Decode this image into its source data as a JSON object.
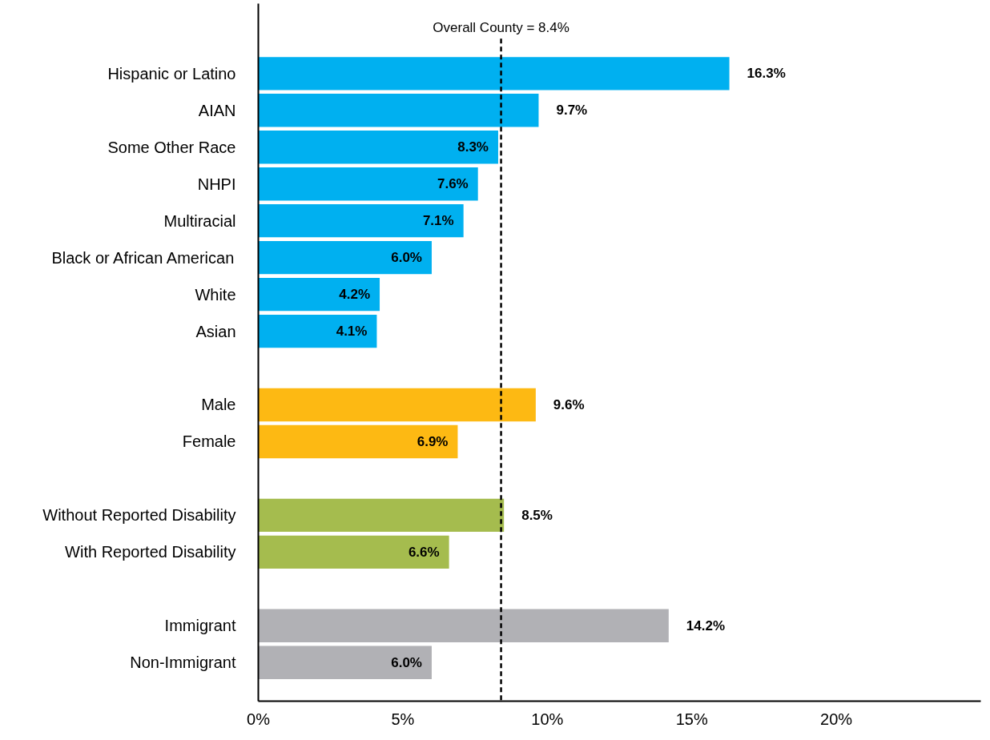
{
  "chart_data": {
    "type": "bar",
    "orientation": "horizontal",
    "categories": [
      "Hispanic or Latino",
      "AIAN",
      "Some Other Race",
      "NHPI",
      "Multiracial",
      "Black or African American",
      "White",
      "Asian",
      null,
      "Male",
      "Female",
      null,
      "Without Reported Disability",
      "With Reported Disability",
      null,
      "Immigrant",
      "Non-Immigrant"
    ],
    "values": [
      16.3,
      9.7,
      8.3,
      7.6,
      7.1,
      6.0,
      4.2,
      4.1,
      null,
      9.6,
      6.9,
      null,
      8.5,
      6.6,
      null,
      14.2,
      6.0
    ],
    "value_labels": [
      "16.3%",
      "9.7%",
      "8.3%",
      "7.6%",
      "7.1%",
      "6.0%",
      "4.2%",
      "4.1%",
      null,
      "9.6%",
      "6.9%",
      null,
      "8.5%",
      "6.6%",
      null,
      "14.2%",
      "6.0%"
    ],
    "colors": [
      "#00b0f0",
      "#00b0f0",
      "#00b0f0",
      "#00b0f0",
      "#00b0f0",
      "#00b0f0",
      "#00b0f0",
      "#00b0f0",
      null,
      "#fdb913",
      "#fdb913",
      null,
      "#a5bc4e",
      "#a5bc4e",
      null,
      "#b1b1b5",
      "#b1b1b5"
    ],
    "xlim": [
      0,
      25
    ],
    "xticks": [
      {
        "value": 0,
        "label": "0%"
      },
      {
        "value": 5,
        "label": "5%"
      },
      {
        "value": 10,
        "label": "10%"
      },
      {
        "value": 15,
        "label": "15%"
      },
      {
        "value": 20,
        "label": "20%"
      }
    ],
    "ref_lines": [
      {
        "axis": "x",
        "value": 8.4,
        "label": "Overall County = 8.4%",
        "color": "#000000",
        "line_style": "dashed"
      }
    ],
    "grid": false
  }
}
